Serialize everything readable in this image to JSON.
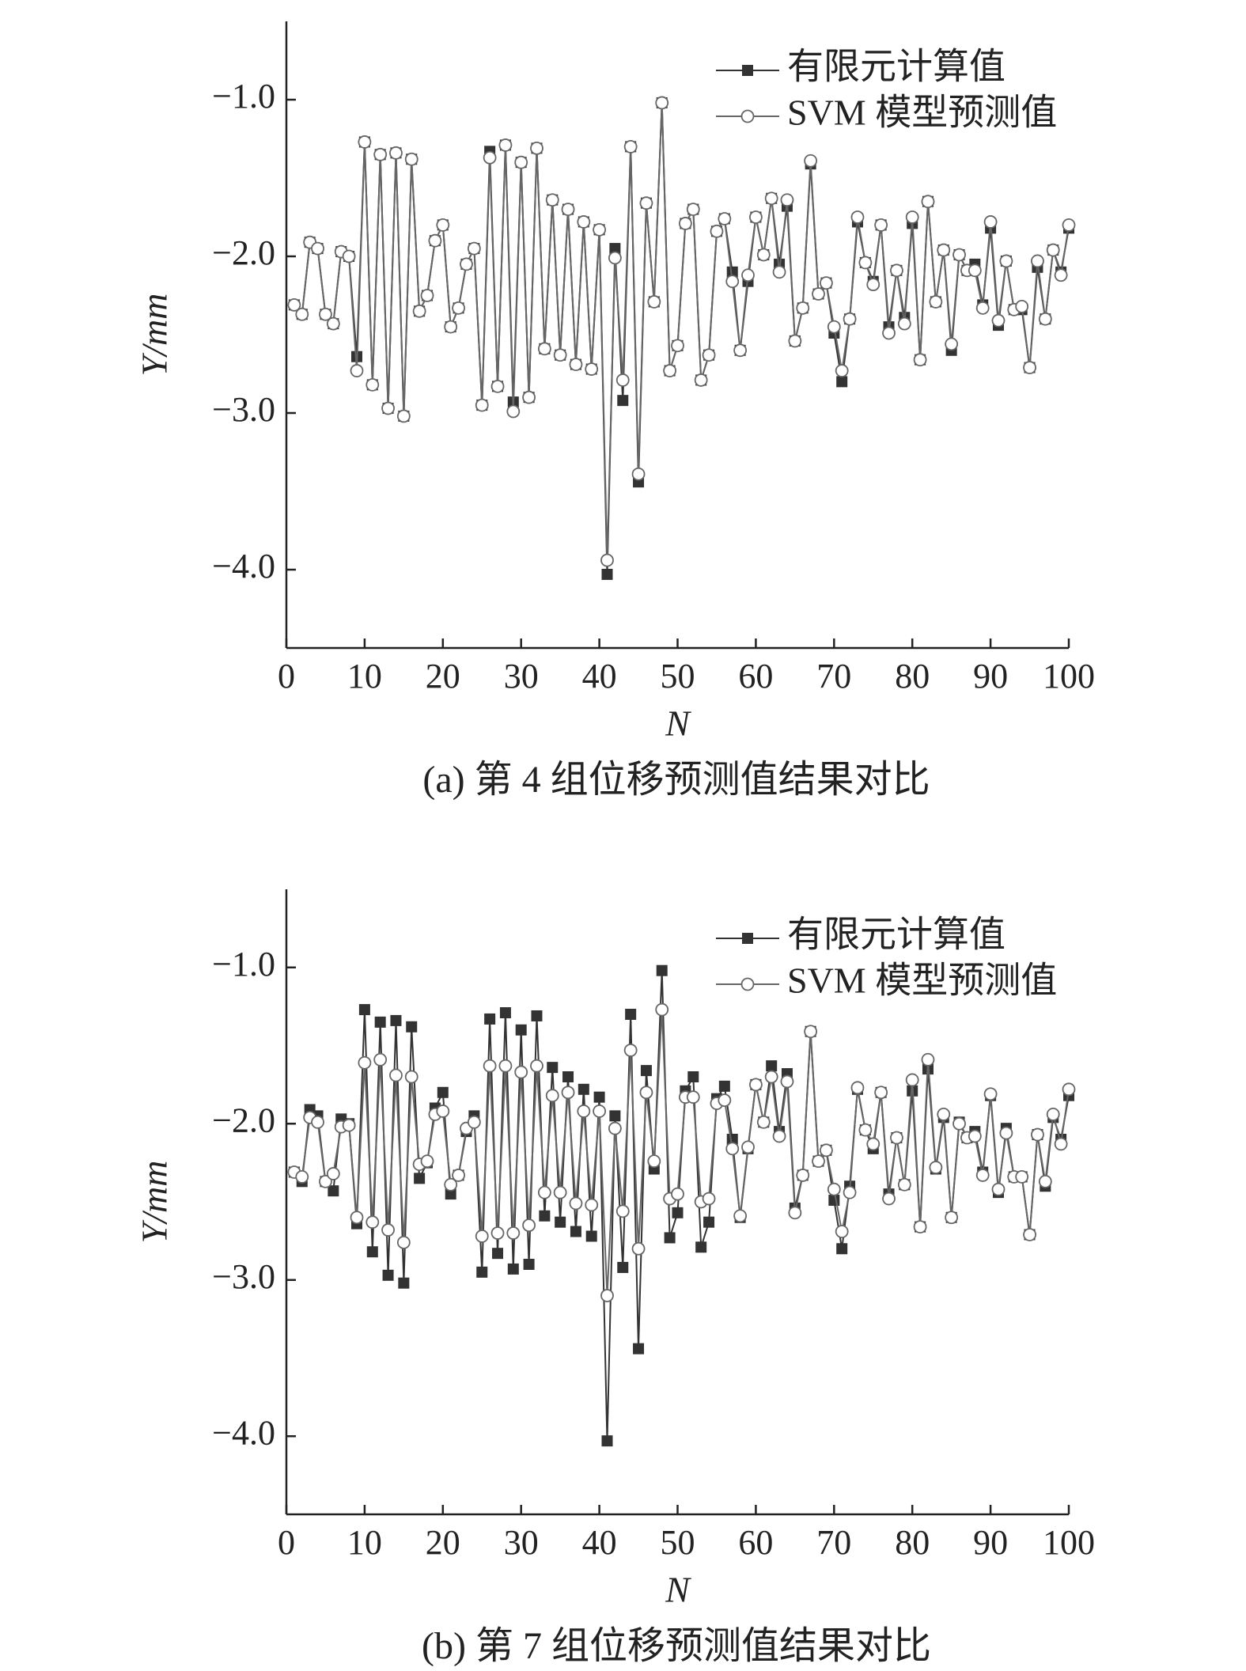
{
  "chart_data": [
    {
      "type": "line",
      "title": "(a) 第 4 组位移预测值结果对比",
      "xlabel": "N",
      "ylabel": "Y/mm",
      "x": [
        1,
        2,
        3,
        4,
        5,
        6,
        7,
        8,
        9,
        10,
        11,
        12,
        13,
        14,
        15,
        16,
        17,
        18,
        19,
        20,
        21,
        22,
        23,
        24,
        25,
        26,
        27,
        28,
        29,
        30,
        31,
        32,
        33,
        34,
        35,
        36,
        37,
        38,
        39,
        40,
        41,
        42,
        43,
        44,
        45,
        46,
        47,
        48,
        49,
        50,
        51,
        52,
        53,
        54,
        55,
        56,
        57,
        58,
        59,
        60,
        61,
        62,
        63,
        64,
        65,
        66,
        67,
        68,
        69,
        70,
        71,
        72,
        73,
        74,
        75,
        76,
        77,
        78,
        79,
        80,
        81,
        82,
        83,
        84,
        85,
        86,
        87,
        88,
        89,
        90,
        91,
        92,
        93,
        94,
        95,
        96,
        97,
        98,
        99,
        100
      ],
      "xlim": [
        0,
        100
      ],
      "xticks": [
        0,
        10,
        20,
        30,
        40,
        50,
        60,
        70,
        80,
        90,
        100
      ],
      "ylim": [
        -4.5,
        -0.5
      ],
      "yticks": [
        {
          "value": -1,
          "label": "−1.0"
        },
        {
          "value": -2,
          "label": "−2.0"
        },
        {
          "value": -3,
          "label": "−3.0"
        },
        {
          "value": -4,
          "label": "−4.0"
        }
      ],
      "series": [
        {
          "name": "有限元计算值",
          "color": "#333333",
          "marker": "square",
          "values": [
            -2.31,
            -2.37,
            -1.91,
            -1.95,
            -2.37,
            -2.43,
            -1.97,
            -2.0,
            -2.64,
            -1.27,
            -2.82,
            -1.35,
            -2.97,
            -1.34,
            -3.02,
            -1.38,
            -2.35,
            -2.25,
            -1.9,
            -1.8,
            -2.45,
            -2.33,
            -2.05,
            -1.95,
            -2.95,
            -1.33,
            -2.83,
            -1.29,
            -2.93,
            -1.4,
            -2.9,
            -1.31,
            -2.59,
            -1.64,
            -2.63,
            -1.7,
            -2.69,
            -1.78,
            -2.72,
            -1.83,
            -4.03,
            -1.95,
            -2.92,
            -1.3,
            -3.44,
            -1.66,
            -2.29,
            -1.02,
            -2.73,
            -2.57,
            -1.79,
            -1.7,
            -2.79,
            -2.63,
            -1.84,
            -1.76,
            -2.1,
            -2.6,
            -2.16,
            -1.75,
            -1.99,
            -1.63,
            -2.05,
            -1.68,
            -2.54,
            -2.33,
            -1.41,
            -2.24,
            -2.17,
            -2.49,
            -2.8,
            -2.4,
            -1.78,
            -2.04,
            -2.16,
            -1.8,
            -2.45,
            -2.09,
            -2.39,
            -1.79,
            -2.66,
            -1.65,
            -2.29,
            -1.96,
            -2.6,
            -1.99,
            -2.09,
            -2.05,
            -2.31,
            -1.82,
            -2.44,
            -2.03,
            -2.34,
            -2.34,
            -2.71,
            -2.07,
            -2.4,
            -1.96,
            -2.1,
            -1.82
          ]
        },
        {
          "name": "SVM 模型预测值",
          "color": "#666666",
          "marker": "circle",
          "values": [
            -2.31,
            -2.37,
            -1.91,
            -1.95,
            -2.37,
            -2.43,
            -1.97,
            -2.0,
            -2.73,
            -1.27,
            -2.82,
            -1.35,
            -2.97,
            -1.34,
            -3.02,
            -1.38,
            -2.35,
            -2.25,
            -1.9,
            -1.8,
            -2.45,
            -2.33,
            -2.05,
            -1.95,
            -2.95,
            -1.37,
            -2.83,
            -1.29,
            -2.99,
            -1.4,
            -2.9,
            -1.31,
            -2.59,
            -1.64,
            -2.63,
            -1.7,
            -2.69,
            -1.78,
            -2.72,
            -1.83,
            -3.94,
            -2.01,
            -2.79,
            -1.3,
            -3.39,
            -1.66,
            -2.29,
            -1.02,
            -2.73,
            -2.57,
            -1.79,
            -1.7,
            -2.79,
            -2.63,
            -1.84,
            -1.76,
            -2.16,
            -2.6,
            -2.12,
            -1.75,
            -1.99,
            -1.63,
            -2.1,
            -1.64,
            -2.54,
            -2.33,
            -1.39,
            -2.24,
            -2.17,
            -2.45,
            -2.73,
            -2.4,
            -1.75,
            -2.04,
            -2.18,
            -1.8,
            -2.49,
            -2.09,
            -2.43,
            -1.75,
            -2.66,
            -1.65,
            -2.29,
            -1.96,
            -2.56,
            -1.99,
            -2.09,
            -2.09,
            -2.33,
            -1.78,
            -2.41,
            -2.03,
            -2.34,
            -2.32,
            -2.71,
            -2.03,
            -2.4,
            -1.96,
            -2.12,
            -1.8
          ]
        }
      ]
    },
    {
      "type": "line",
      "title": "(b) 第 7 组位移预测值结果对比",
      "xlabel": "N",
      "ylabel": "Y/mm",
      "x": [
        1,
        2,
        3,
        4,
        5,
        6,
        7,
        8,
        9,
        10,
        11,
        12,
        13,
        14,
        15,
        16,
        17,
        18,
        19,
        20,
        21,
        22,
        23,
        24,
        25,
        26,
        27,
        28,
        29,
        30,
        31,
        32,
        33,
        34,
        35,
        36,
        37,
        38,
        39,
        40,
        41,
        42,
        43,
        44,
        45,
        46,
        47,
        48,
        49,
        50,
        51,
        52,
        53,
        54,
        55,
        56,
        57,
        58,
        59,
        60,
        61,
        62,
        63,
        64,
        65,
        66,
        67,
        68,
        69,
        70,
        71,
        72,
        73,
        74,
        75,
        76,
        77,
        78,
        79,
        80,
        81,
        82,
        83,
        84,
        85,
        86,
        87,
        88,
        89,
        90,
        91,
        92,
        93,
        94,
        95,
        96,
        97,
        98,
        99,
        100
      ],
      "xlim": [
        0,
        100
      ],
      "xticks": [
        0,
        10,
        20,
        30,
        40,
        50,
        60,
        70,
        80,
        90,
        100
      ],
      "ylim": [
        -4.5,
        -0.5
      ],
      "yticks": [
        {
          "value": -1,
          "label": "−1.0"
        },
        {
          "value": -2,
          "label": "−2.0"
        },
        {
          "value": -3,
          "label": "−3.0"
        },
        {
          "value": -4,
          "label": "−4.0"
        }
      ],
      "series": [
        {
          "name": "有限元计算值",
          "color": "#333333",
          "marker": "square",
          "values": [
            -2.31,
            -2.37,
            -1.91,
            -1.95,
            -2.37,
            -2.43,
            -1.97,
            -2.0,
            -2.64,
            -1.27,
            -2.82,
            -1.35,
            -2.97,
            -1.34,
            -3.02,
            -1.38,
            -2.35,
            -2.25,
            -1.9,
            -1.8,
            -2.45,
            -2.33,
            -2.05,
            -1.95,
            -2.95,
            -1.33,
            -2.83,
            -1.29,
            -2.93,
            -1.4,
            -2.9,
            -1.31,
            -2.59,
            -1.64,
            -2.63,
            -1.7,
            -2.69,
            -1.78,
            -2.72,
            -1.83,
            -4.03,
            -1.95,
            -2.92,
            -1.3,
            -3.44,
            -1.66,
            -2.29,
            -1.02,
            -2.73,
            -2.57,
            -1.79,
            -1.7,
            -2.79,
            -2.63,
            -1.84,
            -1.76,
            -2.1,
            -2.6,
            -2.16,
            -1.75,
            -1.99,
            -1.63,
            -2.05,
            -1.68,
            -2.54,
            -2.33,
            -1.41,
            -2.24,
            -2.17,
            -2.49,
            -2.8,
            -2.4,
            -1.78,
            -2.04,
            -2.16,
            -1.8,
            -2.45,
            -2.09,
            -2.39,
            -1.79,
            -2.66,
            -1.65,
            -2.29,
            -1.96,
            -2.6,
            -1.99,
            -2.09,
            -2.05,
            -2.31,
            -1.82,
            -2.44,
            -2.03,
            -2.34,
            -2.34,
            -2.71,
            -2.07,
            -2.4,
            -1.96,
            -2.1,
            -1.82
          ]
        },
        {
          "name": "SVM 模型预测值",
          "color": "#666666",
          "marker": "circle",
          "values": [
            -2.31,
            -2.34,
            -1.96,
            -1.99,
            -2.37,
            -2.32,
            -2.02,
            -2.01,
            -2.6,
            -1.61,
            -2.63,
            -1.59,
            -2.68,
            -1.69,
            -2.76,
            -1.7,
            -2.26,
            -2.24,
            -1.94,
            -1.92,
            -2.39,
            -2.33,
            -2.03,
            -1.99,
            -2.72,
            -1.63,
            -2.7,
            -1.63,
            -2.7,
            -1.67,
            -2.65,
            -1.63,
            -2.44,
            -1.82,
            -2.44,
            -1.8,
            -2.51,
            -1.92,
            -2.52,
            -1.92,
            -3.1,
            -2.03,
            -2.56,
            -1.53,
            -2.8,
            -1.8,
            -2.24,
            -1.27,
            -2.48,
            -2.45,
            -1.83,
            -1.83,
            -2.5,
            -2.48,
            -1.87,
            -1.85,
            -2.16,
            -2.59,
            -2.15,
            -1.75,
            -1.99,
            -1.7,
            -2.08,
            -1.73,
            -2.57,
            -2.33,
            -1.41,
            -2.24,
            -2.17,
            -2.42,
            -2.69,
            -2.44,
            -1.77,
            -2.04,
            -2.13,
            -1.8,
            -2.48,
            -2.09,
            -2.39,
            -1.72,
            -2.66,
            -1.59,
            -2.28,
            -1.94,
            -2.6,
            -2.0,
            -2.09,
            -2.08,
            -2.33,
            -1.81,
            -2.42,
            -2.06,
            -2.34,
            -2.34,
            -2.71,
            -2.07,
            -2.37,
            -1.94,
            -2.13,
            -1.78
          ]
        }
      ]
    }
  ]
}
